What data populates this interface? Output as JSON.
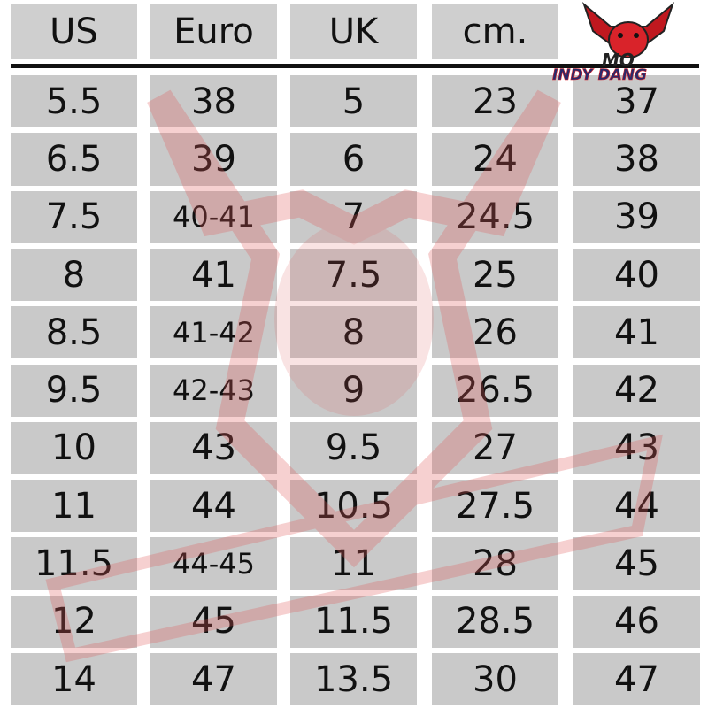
{
  "chart_data": {
    "type": "table",
    "columns": [
      "US",
      "Euro",
      "UK",
      "cm.",
      ""
    ],
    "rows": [
      [
        "5.5",
        "38",
        "5",
        "23",
        "37"
      ],
      [
        "6.5",
        "39",
        "6",
        "24",
        "38"
      ],
      [
        "7.5",
        "40-41",
        "7",
        "24.5",
        "39"
      ],
      [
        "8",
        "41",
        "7.5",
        "25",
        "40"
      ],
      [
        "8.5",
        "41-42",
        "8",
        "26",
        "41"
      ],
      [
        "9.5",
        "42-43",
        "9",
        "26.5",
        "42"
      ],
      [
        "10",
        "43",
        "9.5",
        "27",
        "43"
      ],
      [
        "11",
        "44",
        "10.5",
        "27.5",
        "44"
      ],
      [
        "11.5",
        "44-45",
        "11",
        "28",
        "45"
      ],
      [
        "12",
        "45",
        "11.5",
        "28.5",
        "46"
      ],
      [
        "14",
        "47",
        "13.5",
        "30",
        "47"
      ]
    ]
  },
  "logo": {
    "text_top": "MO",
    "text_bottom": "INDY DANG",
    "color": "#d9232a"
  },
  "colors": {
    "cell": "#c9c9c9",
    "rule": "#111111",
    "watermark": "#e05a5a"
  }
}
